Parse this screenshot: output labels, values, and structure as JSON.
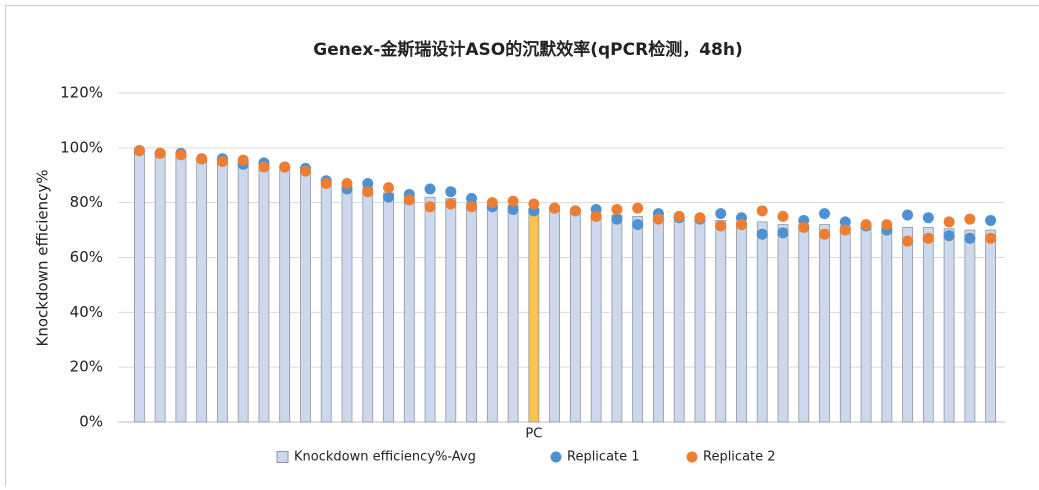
{
  "chart_data": {
    "type": "bar",
    "title": "Genex-金斯瑞设计ASO的沉默效率(qPCR检测，48h)",
    "y_label": "Knockdown efficiency%",
    "categories": [
      null,
      null,
      null,
      null,
      null,
      null,
      null,
      null,
      null,
      null,
      null,
      null,
      null,
      null,
      null,
      null,
      null,
      null,
      null,
      "PC",
      null,
      null,
      null,
      null,
      null,
      null,
      null,
      null,
      null,
      null,
      null,
      null,
      null,
      null,
      null,
      null,
      null,
      null,
      null,
      null,
      null,
      null
    ],
    "series": [
      {
        "name": "Knockdown efficiency%-Avg",
        "type": "bar",
        "color": "#cdd8ec",
        "colors": [
          "#cdd8ec",
          "#cdd8ec",
          "#cdd8ec",
          "#cdd8ec",
          "#cdd8ec",
          "#cdd8ec",
          "#cdd8ec",
          "#cdd8ec",
          "#cdd8ec",
          "#cdd8ec",
          "#cdd8ec",
          "#cdd8ec",
          "#cdd8ec",
          "#cdd8ec",
          "#cdd8ec",
          "#cdd8ec",
          "#cdd8ec",
          "#cdd8ec",
          "#cdd8ec",
          "#f9c44e",
          "#cdd8ec",
          "#cdd8ec",
          "#cdd8ec",
          "#cdd8ec",
          "#cdd8ec",
          "#cdd8ec",
          "#cdd8ec",
          "#cdd8ec",
          "#cdd8ec",
          "#cdd8ec",
          "#cdd8ec",
          "#cdd8ec",
          "#cdd8ec",
          "#cdd8ec",
          "#cdd8ec",
          "#cdd8ec",
          "#cdd8ec",
          "#cdd8ec",
          "#cdd8ec",
          "#cdd8ec",
          "#cdd8ec",
          "#cdd8ec"
        ],
        "values": [
          99,
          98,
          97.5,
          96,
          95.5,
          95,
          94,
          93,
          92,
          87.5,
          86,
          85.5,
          83.5,
          82,
          82,
          81.5,
          80,
          79,
          79,
          78,
          78,
          77,
          76,
          75.5,
          75,
          75,
          74.5,
          74,
          73.5,
          73,
          73,
          72,
          72,
          72,
          71.5,
          71.5,
          71,
          71,
          71,
          70.5,
          70,
          70
        ]
      },
      {
        "name": "Replicate 1",
        "type": "scatter",
        "color": "#4e91d2",
        "values": [
          99,
          98,
          98,
          96,
          96,
          94,
          94.5,
          93,
          92.5,
          88,
          85,
          87,
          82,
          83,
          85,
          84,
          81.5,
          78.5,
          77.5,
          77,
          78,
          77,
          77.5,
          74,
          72,
          76,
          74.5,
          74,
          76,
          74.5,
          68.5,
          69,
          73.5,
          76,
          73,
          71.5,
          70,
          75.5,
          74.5,
          68,
          67,
          73.5
        ]
      },
      {
        "name": "Replicate 2",
        "type": "scatter",
        "color": "#ed7d31",
        "values": [
          99,
          98,
          97.5,
          96,
          95,
          95.5,
          93,
          93,
          91.5,
          87,
          87,
          84,
          85.5,
          81,
          78.5,
          79.5,
          78.5,
          80,
          80.5,
          79.5,
          78,
          77,
          75,
          77.5,
          78,
          74,
          75,
          74.5,
          71.5,
          72,
          77,
          75,
          71,
          68.5,
          70,
          72,
          72,
          66,
          67,
          73,
          74,
          67
        ]
      }
    ],
    "ylim": [
      0,
      120
    ],
    "yticks": [
      {
        "value": 0,
        "label": "0%"
      },
      {
        "value": 20,
        "label": "20%"
      },
      {
        "value": 40,
        "label": "40%"
      },
      {
        "value": 60,
        "label": "60%"
      },
      {
        "value": 80,
        "label": "80%"
      },
      {
        "value": 100,
        "label": "100%"
      },
      {
        "value": 120,
        "label": "120%"
      }
    ],
    "grid": true,
    "legend": "bottom"
  }
}
